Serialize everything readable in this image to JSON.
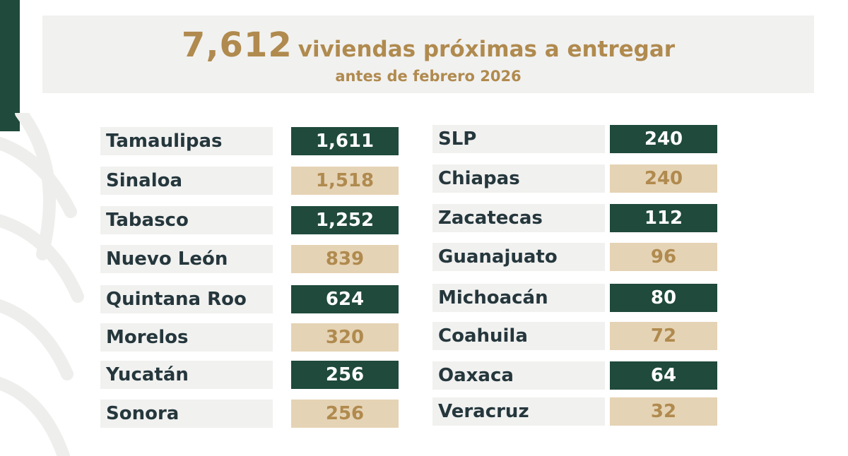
{
  "header": {
    "big_number": "7,612",
    "headline_text": "viviendas próximas a entregar",
    "subtitle": "antes de febrero 2026"
  },
  "colors": {
    "dark_green": "#1f4a3c",
    "gold": "#b08a4e",
    "beige": "#e5d3b5",
    "light_gray": "#f1f1f0",
    "text_dark": "#25373c"
  },
  "rows_left": [
    {
      "state": "Tamaulipas",
      "value": "1,611",
      "style": "dark"
    },
    {
      "state": "Sinaloa",
      "value": "1,518",
      "style": "light"
    },
    {
      "state": "Tabasco",
      "value": "1,252",
      "style": "dark"
    },
    {
      "state": "Nuevo León",
      "value": "839",
      "style": "light"
    },
    {
      "state": "Quintana Roo",
      "value": "624",
      "style": "dark"
    },
    {
      "state": "Morelos",
      "value": "320",
      "style": "light"
    },
    {
      "state": "Yucatán",
      "value": "256",
      "style": "dark"
    },
    {
      "state": "Sonora",
      "value": "256",
      "style": "light"
    }
  ],
  "rows_right": [
    {
      "state": "SLP",
      "value": "240",
      "style": "dark"
    },
    {
      "state": "Chiapas",
      "value": "240",
      "style": "light"
    },
    {
      "state": "Zacatecas",
      "value": "112",
      "style": "dark"
    },
    {
      "state": "Guanajuato",
      "value": "96",
      "style": "light"
    },
    {
      "state": "Michoacán",
      "value": "80",
      "style": "dark"
    },
    {
      "state": "Coahuila",
      "value": "72",
      "style": "light"
    },
    {
      "state": "Oaxaca",
      "value": "64",
      "style": "dark"
    },
    {
      "state": "Veracruz",
      "value": "32",
      "style": "light"
    }
  ]
}
